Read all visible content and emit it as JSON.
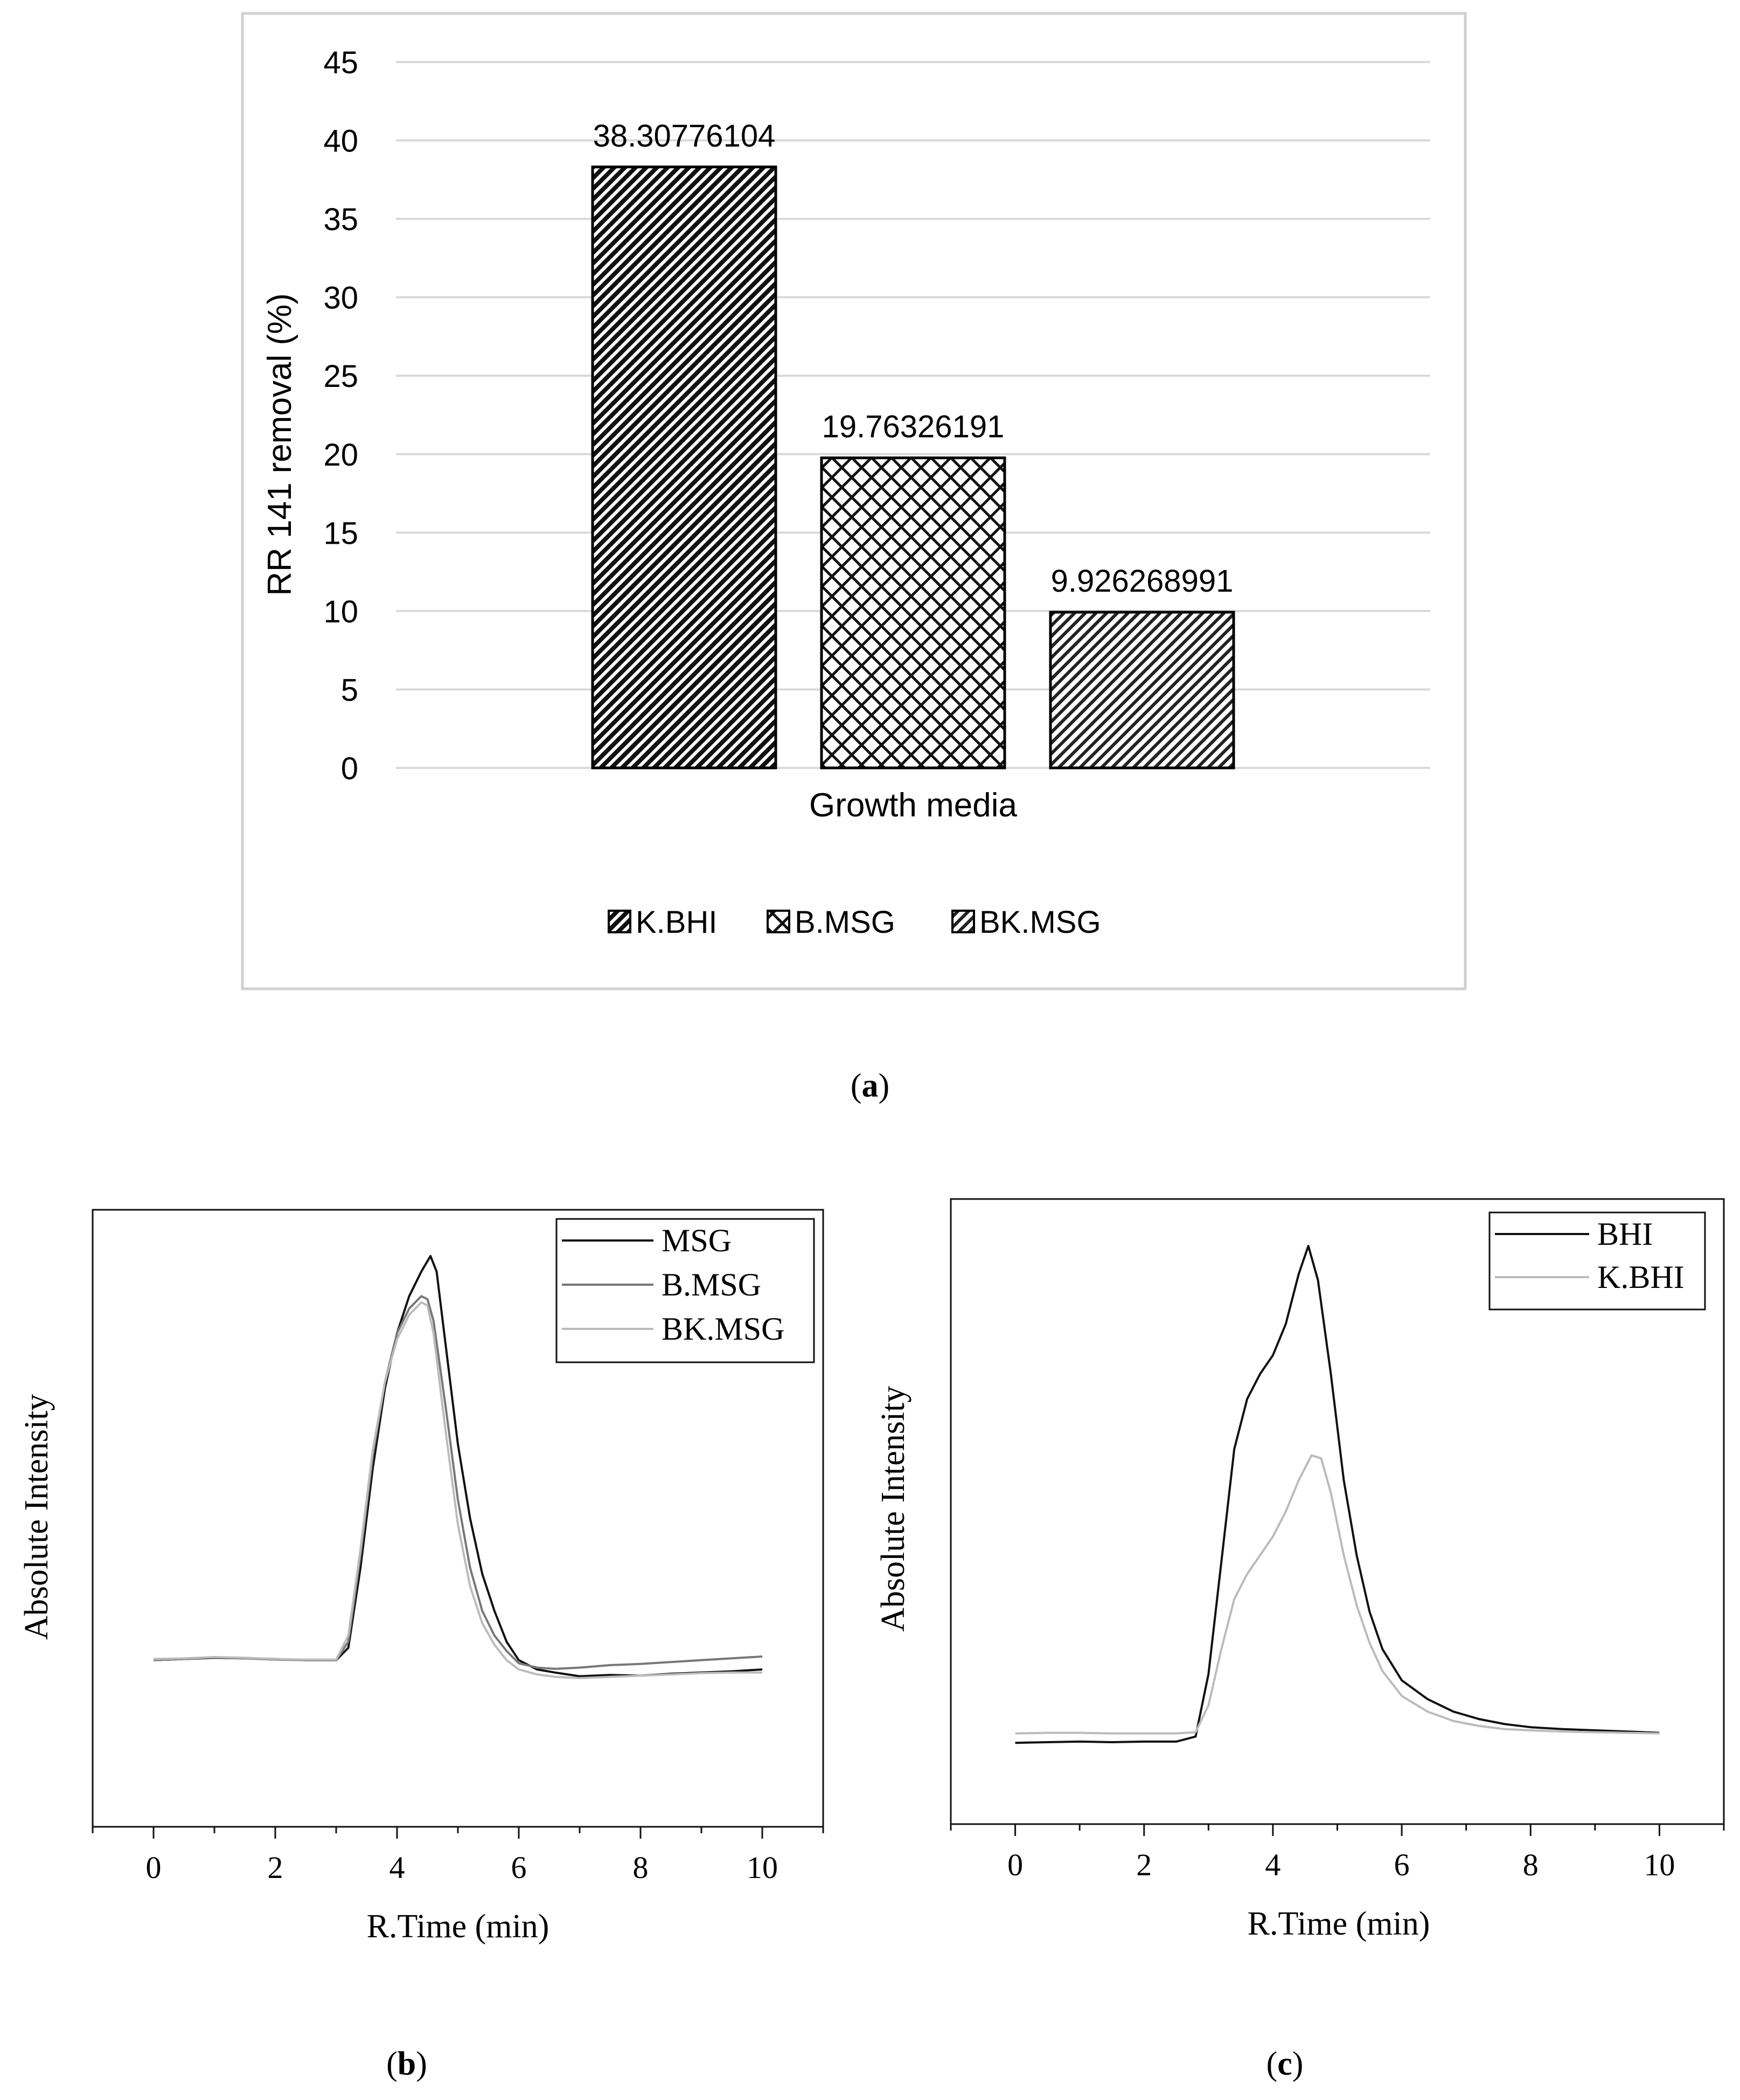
{
  "chart_data": [
    {
      "type": "bar",
      "panel_caption": "(a)",
      "panel_letter": "a",
      "categories": [
        "K.BHI",
        "B.MSG",
        "BK.MSG"
      ],
      "values": [
        38.30776104,
        19.76326191,
        9.926268991
      ],
      "data_labels": [
        "38.30776104",
        "19.76326191",
        "9.926268991"
      ],
      "ylabel": "RR 141 removal (%)",
      "xlabel": "Growth media",
      "ylim": [
        0,
        45
      ],
      "yticks": [
        0,
        5,
        10,
        15,
        20,
        25,
        30,
        35,
        40,
        45
      ],
      "grid": true,
      "legend": [
        "K.BHI",
        "B.MSG",
        "BK.MSG"
      ],
      "legend_position": "bottom",
      "patterns": [
        "diagonal-dense",
        "crosshatch",
        "diagonal-light"
      ]
    },
    {
      "type": "line",
      "panel_caption": "(b)",
      "panel_letter": "b",
      "xlabel": "R.Time (min)",
      "ylabel": "Absolute Intensity",
      "xlim": [
        -1,
        11
      ],
      "ylim": [
        0,
        1
      ],
      "xticks": [
        0,
        2,
        4,
        6,
        8,
        10
      ],
      "grid": false,
      "legend_position": "top-right",
      "series": [
        {
          "name": "MSG",
          "color": "#111111",
          "x": [
            0,
            0.5,
            1,
            1.5,
            2,
            2.5,
            3,
            3.2,
            3.4,
            3.6,
            3.8,
            4.0,
            4.2,
            4.4,
            4.55,
            4.65,
            4.8,
            5.0,
            5.2,
            5.4,
            5.6,
            5.8,
            6.0,
            6.3,
            6.6,
            7.0,
            7.5,
            8,
            8.5,
            9,
            9.5,
            10
          ],
          "y": [
            0.27,
            0.272,
            0.274,
            0.273,
            0.272,
            0.27,
            0.27,
            0.29,
            0.42,
            0.58,
            0.71,
            0.8,
            0.86,
            0.9,
            0.925,
            0.9,
            0.78,
            0.62,
            0.5,
            0.41,
            0.35,
            0.3,
            0.27,
            0.255,
            0.25,
            0.244,
            0.246,
            0.245,
            0.248,
            0.25,
            0.252,
            0.255
          ]
        },
        {
          "name": "B.MSG",
          "color": "#777777",
          "x": [
            0,
            0.5,
            1,
            1.5,
            2,
            2.5,
            3,
            3.2,
            3.4,
            3.6,
            3.8,
            4.0,
            4.2,
            4.4,
            4.5,
            4.6,
            4.8,
            5.0,
            5.2,
            5.4,
            5.6,
            5.8,
            6.0,
            6.3,
            6.6,
            7.0,
            7.5,
            8,
            8.5,
            9,
            9.5,
            10
          ],
          "y": [
            0.27,
            0.272,
            0.275,
            0.273,
            0.271,
            0.27,
            0.27,
            0.3,
            0.44,
            0.6,
            0.72,
            0.8,
            0.84,
            0.86,
            0.855,
            0.82,
            0.68,
            0.53,
            0.42,
            0.35,
            0.31,
            0.285,
            0.265,
            0.258,
            0.256,
            0.258,
            0.262,
            0.264,
            0.267,
            0.27,
            0.273,
            0.276
          ]
        },
        {
          "name": "BK.MSG",
          "color": "#bbbbbb",
          "x": [
            0,
            0.5,
            1,
            1.5,
            2,
            2.5,
            3,
            3.2,
            3.4,
            3.6,
            3.8,
            4.0,
            4.2,
            4.4,
            4.5,
            4.6,
            4.8,
            5.0,
            5.2,
            5.4,
            5.6,
            5.8,
            6.0,
            6.3,
            6.6,
            7.0,
            7.5,
            8,
            8.5,
            9,
            9.5,
            10
          ],
          "y": [
            0.272,
            0.273,
            0.275,
            0.274,
            0.272,
            0.271,
            0.271,
            0.31,
            0.45,
            0.61,
            0.72,
            0.79,
            0.83,
            0.85,
            0.845,
            0.8,
            0.64,
            0.49,
            0.39,
            0.33,
            0.295,
            0.27,
            0.255,
            0.247,
            0.243,
            0.241,
            0.243,
            0.245,
            0.247,
            0.249,
            0.25,
            0.25
          ]
        }
      ]
    },
    {
      "type": "line",
      "panel_caption": "(c)",
      "panel_letter": "c",
      "xlabel": "R.Time (min)",
      "ylabel": "Absolute Intensity",
      "xlim": [
        -1,
        11
      ],
      "ylim": [
        0,
        1
      ],
      "xticks": [
        0,
        2,
        4,
        6,
        8,
        10
      ],
      "grid": false,
      "legend_position": "top-right",
      "series": [
        {
          "name": "BHI",
          "color": "#111111",
          "x": [
            0,
            0.5,
            1,
            1.5,
            2,
            2.5,
            2.8,
            3.0,
            3.2,
            3.4,
            3.6,
            3.8,
            4.0,
            4.2,
            4.4,
            4.55,
            4.7,
            4.9,
            5.1,
            5.3,
            5.5,
            5.7,
            6.0,
            6.4,
            6.8,
            7.2,
            7.6,
            8,
            8.5,
            9,
            9.5,
            10
          ],
          "y": [
            0.13,
            0.131,
            0.132,
            0.131,
            0.132,
            0.132,
            0.14,
            0.24,
            0.42,
            0.6,
            0.68,
            0.72,
            0.75,
            0.8,
            0.88,
            0.925,
            0.87,
            0.72,
            0.55,
            0.43,
            0.34,
            0.28,
            0.23,
            0.2,
            0.18,
            0.168,
            0.16,
            0.155,
            0.152,
            0.15,
            0.148,
            0.146
          ]
        },
        {
          "name": "K.BHI",
          "color": "#bbbbbb",
          "x": [
            0,
            0.5,
            1,
            1.5,
            2,
            2.5,
            2.8,
            3.0,
            3.2,
            3.4,
            3.6,
            3.8,
            4.0,
            4.2,
            4.4,
            4.6,
            4.75,
            4.9,
            5.1,
            5.3,
            5.5,
            5.7,
            6.0,
            6.4,
            6.8,
            7.2,
            7.6,
            8,
            8.5,
            9,
            9.5,
            10
          ],
          "y": [
            0.145,
            0.146,
            0.146,
            0.145,
            0.145,
            0.145,
            0.147,
            0.19,
            0.28,
            0.36,
            0.4,
            0.43,
            0.46,
            0.5,
            0.55,
            0.59,
            0.585,
            0.53,
            0.43,
            0.35,
            0.29,
            0.245,
            0.205,
            0.18,
            0.165,
            0.157,
            0.152,
            0.15,
            0.148,
            0.147,
            0.146,
            0.145
          ]
        }
      ]
    }
  ]
}
